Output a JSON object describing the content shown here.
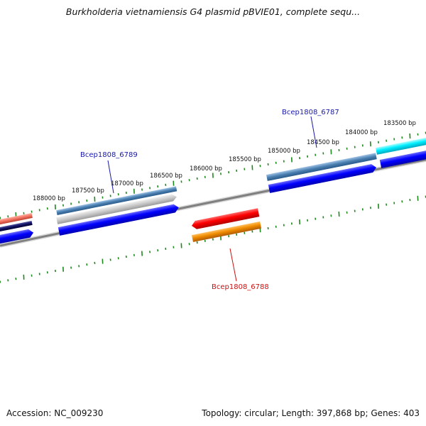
{
  "title": "Burkholderia vietnamiensis G4 plasmid pBVIE01, complete sequ...",
  "footer": {
    "accession": "Accession: NC_009230",
    "summary": "Topology: circular; Length: 397,868 bp; Genes: 403"
  },
  "scale_labels": [
    {
      "pos": 188000,
      "label": "188000 bp"
    },
    {
      "pos": 187500,
      "label": "187500 bp"
    },
    {
      "pos": 187000,
      "label": "187000 bp"
    },
    {
      "pos": 186500,
      "label": "186500 bp"
    },
    {
      "pos": 186000,
      "label": "186000 bp"
    },
    {
      "pos": 185500,
      "label": "185500 bp"
    },
    {
      "pos": 185000,
      "label": "185000 bp"
    },
    {
      "pos": 184500,
      "label": "184500 bp"
    },
    {
      "pos": 184000,
      "label": "184000 bp"
    },
    {
      "pos": 183500,
      "label": "183500 bp"
    }
  ],
  "genes": [
    {
      "label": "Bcep1808_6789",
      "color": "#1a1aaa"
    },
    {
      "label": "Bcep1808_6787",
      "color": "#1a1aaa"
    },
    {
      "label": "Bcep1808_6788",
      "color": "#cc1111"
    }
  ],
  "colors": {
    "backbone": "#808080",
    "tick": "#1e8a1e",
    "cds": "#0000ee",
    "steelblue_feature": "#4a7fb0",
    "red_feature": "#ee0000",
    "orange_feature": "#f08c00",
    "cyan_feature": "#00e8f0",
    "salmon_feature": "#f07060",
    "navy_feature": "#101060"
  }
}
